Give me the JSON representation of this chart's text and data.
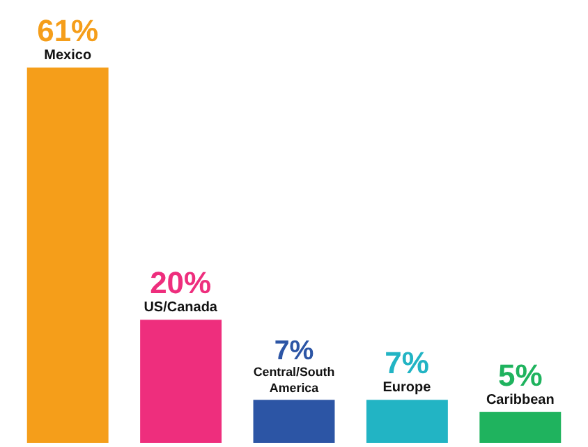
{
  "chart_data": {
    "type": "bar",
    "categories": [
      "Mexico",
      "US/Canada",
      "Central/South America",
      "Europe",
      "Caribbean"
    ],
    "values": [
      61,
      20,
      7,
      7,
      5
    ],
    "value_labels": [
      "61%",
      "20%",
      "7%",
      "7%",
      "5%"
    ],
    "colors": [
      "#f59e1a",
      "#ee2e7d",
      "#2c55a5",
      "#22b4c4",
      "#1fb35e"
    ],
    "legend": false
  }
}
